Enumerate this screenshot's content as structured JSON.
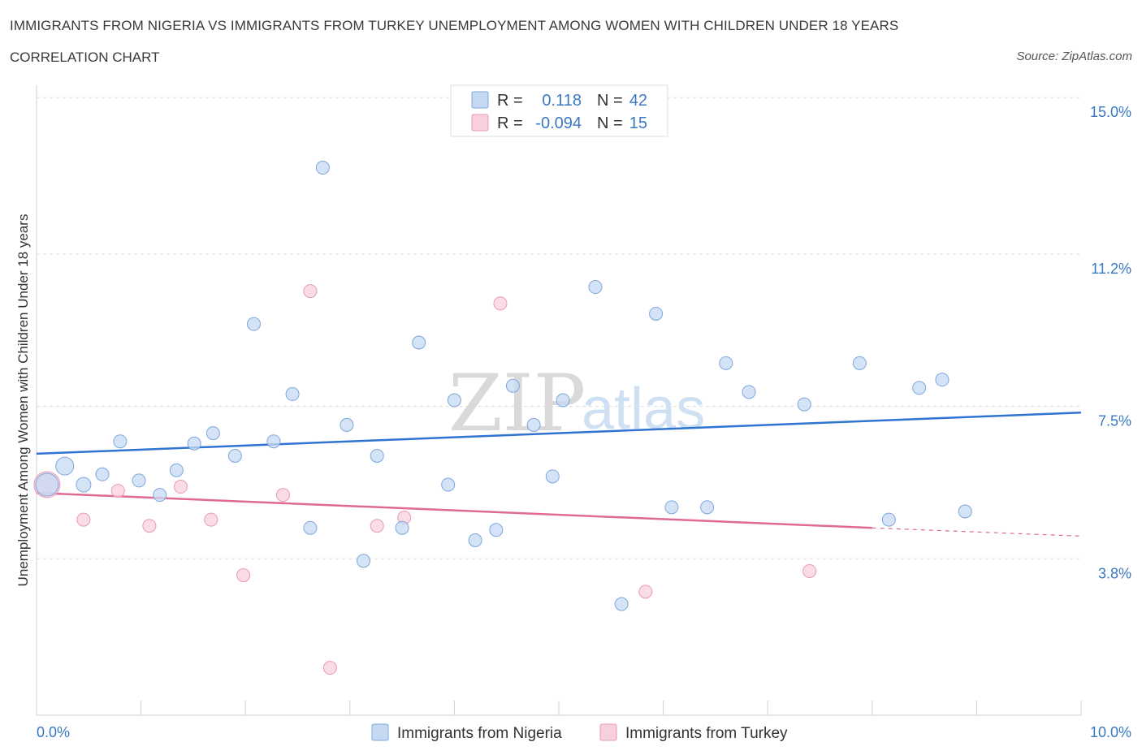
{
  "title": "IMMIGRANTS FROM NIGERIA VS IMMIGRANTS FROM TURKEY UNEMPLOYMENT AMONG WOMEN WITH CHILDREN UNDER 18 YEARS",
  "subtitle": "CORRELATION CHART",
  "source": "Source: ZipAtlas.com",
  "watermark": {
    "zip": "ZIP",
    "atlas": "atlas"
  },
  "colors": {
    "nigeria_fill": "#c5d9f3",
    "nigeria_stroke": "#7ea6dc",
    "nigeria_line": "#2f74d0",
    "turkey_fill": "#f8d0dd",
    "turkey_stroke": "#e89ab3",
    "turkey_line": "#e06a93",
    "tick_text": "#3b78c4"
  },
  "legend": {
    "rows": [
      {
        "r_label": "R =",
        "r_value": "0.118",
        "n_label": "N =",
        "n_value": "42"
      },
      {
        "r_label": "R =",
        "r_value": "-0.094",
        "n_label": "N =",
        "n_value": "15"
      }
    ]
  },
  "chart_data": {
    "type": "scatter",
    "title": "IMMIGRANTS FROM NIGERIA VS IMMIGRANTS FROM TURKEY UNEMPLOYMENT AMONG WOMEN WITH CHILDREN UNDER 18 YEARS",
    "xlabel": "",
    "ylabel": "Unemployment Among Women with Children Under 18 years",
    "xlim": [
      0,
      10
    ],
    "ylim": [
      0,
      15.3
    ],
    "x_tick_labels": [
      "0.0%",
      "10.0%"
    ],
    "y_ticks": [
      3.8,
      7.5,
      11.2,
      15.0
    ],
    "y_tick_labels": [
      "3.8%",
      "7.5%",
      "11.2%",
      "15.0%"
    ],
    "grid": true,
    "legend_position": "top-center",
    "series": [
      {
        "name": "Immigrants from Nigeria",
        "points": [
          [
            0.1,
            5.6,
            14
          ],
          [
            0.27,
            6.05,
            11
          ],
          [
            0.45,
            5.6,
            9
          ],
          [
            0.63,
            5.85,
            8
          ],
          [
            0.8,
            6.65,
            8
          ],
          [
            0.98,
            5.7,
            8
          ],
          [
            1.18,
            5.35,
            8
          ],
          [
            1.34,
            5.95,
            8
          ],
          [
            1.51,
            6.6,
            8
          ],
          [
            1.69,
            6.85,
            8
          ],
          [
            1.9,
            6.3,
            8
          ],
          [
            2.08,
            9.5,
            8
          ],
          [
            2.27,
            6.65,
            8
          ],
          [
            2.45,
            7.8,
            8
          ],
          [
            2.62,
            4.55,
            8
          ],
          [
            2.74,
            13.3,
            8
          ],
          [
            2.97,
            7.05,
            8
          ],
          [
            3.13,
            3.75,
            8
          ],
          [
            3.26,
            6.3,
            8
          ],
          [
            3.5,
            4.55,
            8
          ],
          [
            3.66,
            9.05,
            8
          ],
          [
            3.94,
            5.6,
            8
          ],
          [
            4.0,
            7.65,
            8
          ],
          [
            4.2,
            4.25,
            8
          ],
          [
            4.4,
            4.5,
            8
          ],
          [
            4.56,
            8.0,
            8
          ],
          [
            4.76,
            7.05,
            8
          ],
          [
            4.94,
            5.8,
            8
          ],
          [
            5.04,
            7.65,
            8
          ],
          [
            5.35,
            10.4,
            8
          ],
          [
            5.6,
            2.7,
            8
          ],
          [
            5.93,
            9.75,
            8
          ],
          [
            6.08,
            5.05,
            8
          ],
          [
            6.42,
            5.05,
            8
          ],
          [
            6.6,
            8.55,
            8
          ],
          [
            6.82,
            7.85,
            8
          ],
          [
            7.35,
            7.55,
            8
          ],
          [
            7.88,
            8.55,
            8
          ],
          [
            8.16,
            4.75,
            8
          ],
          [
            8.45,
            7.95,
            8
          ],
          [
            8.67,
            8.15,
            8
          ],
          [
            8.89,
            4.95,
            8
          ]
        ],
        "trend": {
          "x": [
            0,
            10
          ],
          "y": [
            6.35,
            7.35
          ]
        }
      },
      {
        "name": "Immigrants from Turkey",
        "points": [
          [
            0.1,
            5.6,
            16
          ],
          [
            0.45,
            4.75,
            8
          ],
          [
            0.78,
            5.45,
            8
          ],
          [
            1.08,
            4.6,
            8
          ],
          [
            1.38,
            5.55,
            8
          ],
          [
            1.67,
            4.75,
            8
          ],
          [
            1.98,
            3.4,
            8
          ],
          [
            2.36,
            5.35,
            8
          ],
          [
            2.62,
            10.3,
            8
          ],
          [
            2.81,
            1.15,
            8
          ],
          [
            3.26,
            4.6,
            8
          ],
          [
            3.52,
            4.8,
            8
          ],
          [
            4.44,
            10.0,
            8
          ],
          [
            5.83,
            3.0,
            8
          ],
          [
            7.4,
            3.5,
            8
          ]
        ],
        "trend": {
          "x": [
            0,
            8.0
          ],
          "y": [
            5.4,
            4.55
          ]
        },
        "trend_extension": {
          "x": [
            8.0,
            10
          ],
          "y": [
            4.55,
            4.35
          ]
        }
      }
    ]
  },
  "bottom_legend": [
    {
      "label": "Immigrants from Nigeria"
    },
    {
      "label": "Immigrants from Turkey"
    }
  ]
}
